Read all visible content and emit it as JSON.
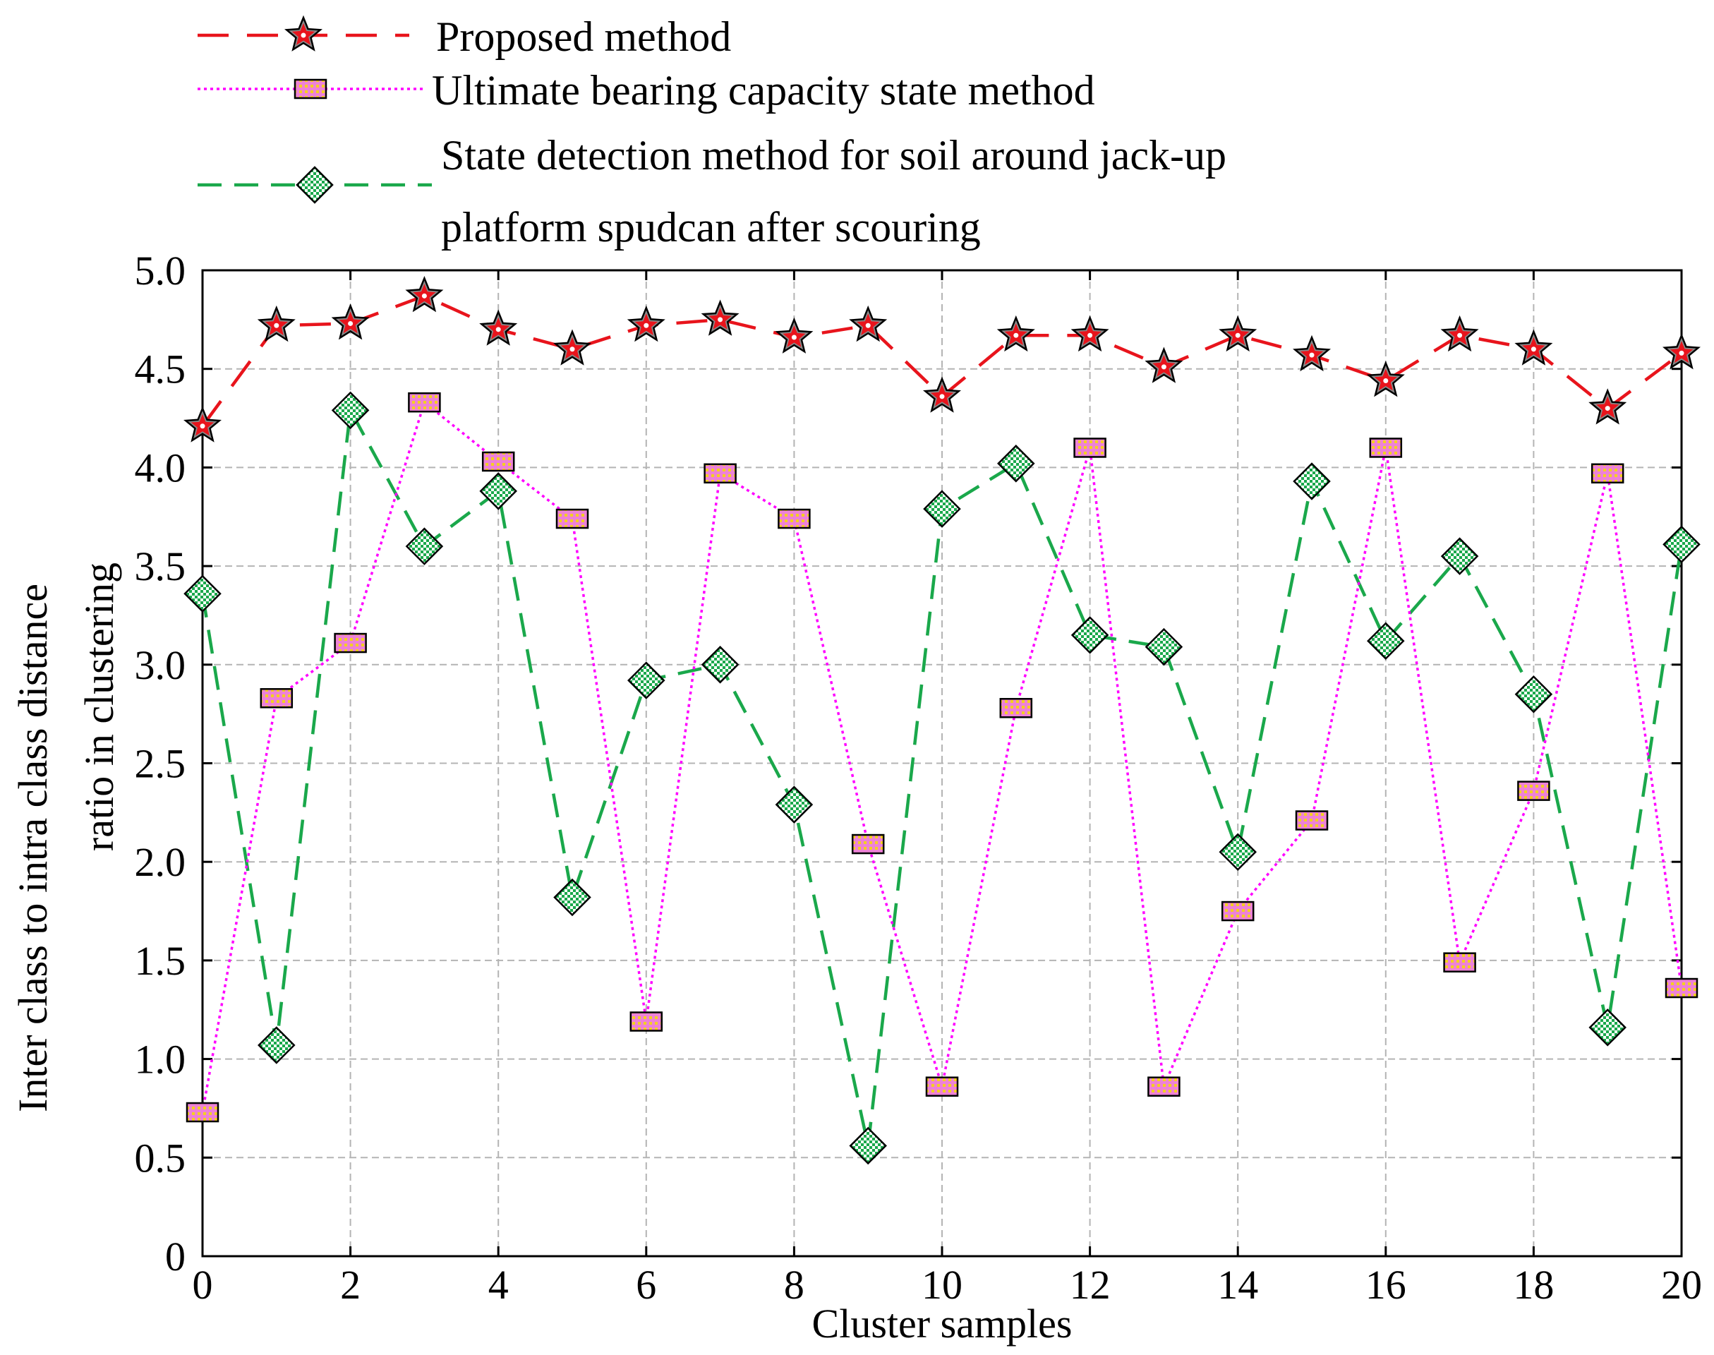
{
  "chart_data": {
    "type": "line",
    "xlabel": "Cluster samples",
    "ylabel_lines": [
      "Inter class to intra class distance",
      "ratio in clustering"
    ],
    "xlim": [
      0,
      20
    ],
    "ylim": [
      0,
      5.0
    ],
    "x_ticks": [
      "0",
      "2",
      "4",
      "6",
      "8",
      "10",
      "12",
      "14",
      "16",
      "18",
      "20"
    ],
    "y_ticks": [
      "0",
      "0.5",
      "1.0",
      "1.5",
      "2.0",
      "2.5",
      "3.0",
      "3.5",
      "4.0",
      "4.5",
      "5.0"
    ],
    "grid": true,
    "legend_position": "top",
    "x": [
      0,
      1,
      2,
      3,
      4,
      5,
      6,
      7,
      8,
      9,
      10,
      11,
      12,
      13,
      14,
      15,
      16,
      17,
      18,
      19,
      20
    ],
    "series": [
      {
        "name": "Proposed method",
        "color": "#e8141c",
        "marker": "star",
        "line_style": "long-dash",
        "values": [
          4.21,
          4.72,
          4.73,
          4.87,
          4.7,
          4.6,
          4.72,
          4.75,
          4.66,
          4.72,
          4.36,
          4.67,
          4.67,
          4.51,
          4.67,
          4.57,
          4.44,
          4.67,
          4.6,
          4.3,
          4.58
        ]
      },
      {
        "name": "Ultimate bearing capacity state method",
        "color": "#ff00ff",
        "marker": "square",
        "line_style": "dotted",
        "values": [
          0.73,
          2.83,
          3.11,
          4.33,
          4.03,
          3.74,
          1.19,
          3.97,
          3.74,
          2.09,
          0.86,
          2.78,
          4.1,
          0.86,
          1.75,
          2.21,
          4.1,
          1.49,
          2.36,
          3.97,
          1.36
        ]
      },
      {
        "name": "State detection method for soil around jack-up platform spudcan after scouring",
        "name_lines": [
          "State detection method for soil around jack-up",
          "platform spudcan after scouring"
        ],
        "color": "#1aa84b",
        "marker": "diamond",
        "line_style": "dashed",
        "values": [
          3.36,
          1.07,
          4.29,
          3.6,
          3.88,
          1.82,
          2.92,
          3.0,
          2.29,
          0.56,
          3.79,
          4.02,
          3.15,
          3.09,
          2.05,
          3.93,
          3.12,
          3.55,
          2.85,
          1.16,
          3.61
        ]
      }
    ]
  }
}
